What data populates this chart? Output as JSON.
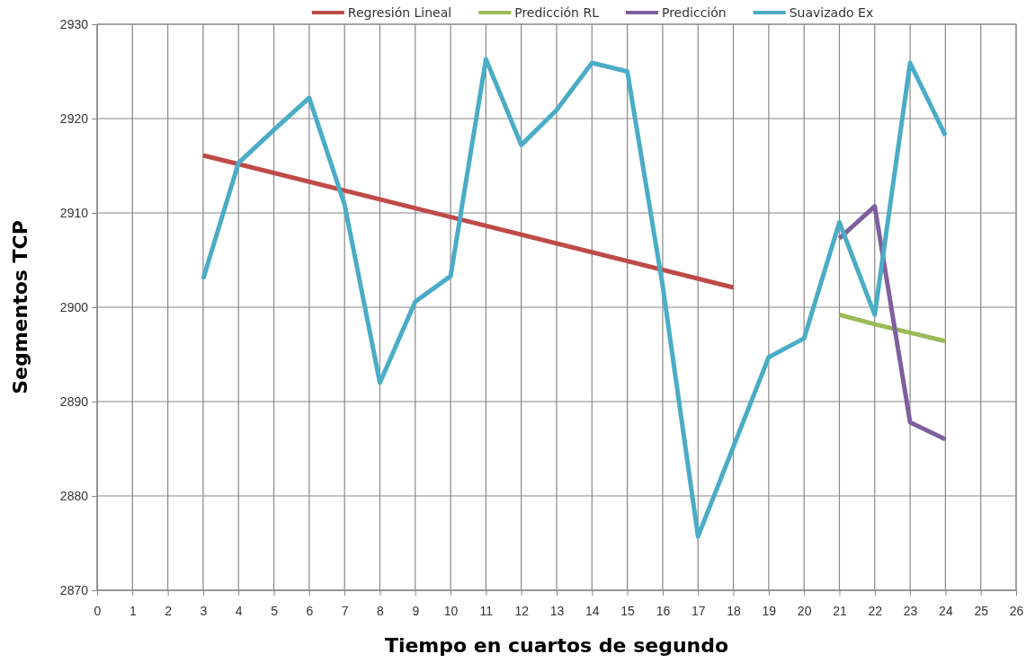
{
  "chart_data": {
    "type": "line",
    "xlabel": "Tiempo en cuartos de segundo",
    "ylabel": "Segmentos TCP",
    "xlim": [
      0,
      26
    ],
    "xticks": [
      0,
      1,
      2,
      3,
      4,
      5,
      6,
      7,
      8,
      9,
      10,
      11,
      12,
      13,
      14,
      15,
      16,
      17,
      18,
      19,
      20,
      21,
      22,
      23,
      24,
      25,
      26
    ],
    "ylim": [
      2870,
      2930
    ],
    "yticks": [
      2870,
      2880,
      2890,
      2900,
      2910,
      2920,
      2930
    ],
    "grid": true,
    "legend": "top",
    "marker": "none",
    "line_style": "solid",
    "series": [
      {
        "name": "Regresión Lineal",
        "color": "#be4b48",
        "x": [
          3,
          18
        ],
        "values": [
          2916.1,
          2902.1
        ]
      },
      {
        "name": "Predicción RL",
        "color": "#9bbb59",
        "x": [
          21,
          22,
          23,
          24
        ],
        "values": [
          2899.2,
          2898.2,
          2897.3,
          2896.4
        ]
      },
      {
        "name": "Predicción",
        "color": "#7f609f",
        "x": [
          21,
          22,
          23,
          24
        ],
        "values": [
          2907.3,
          2910.7,
          2887.8,
          2886.0
        ]
      },
      {
        "name": "Suavizado Ex",
        "color": "#4bacc6",
        "x": [
          3,
          4,
          5,
          6,
          7,
          8,
          9,
          10,
          11,
          12,
          13,
          14,
          15,
          16,
          17,
          18,
          19,
          20,
          21,
          22,
          23,
          24
        ],
        "values": [
          2903,
          2915.3,
          2918.8,
          2922.2,
          2910.9,
          2892,
          2900.6,
          2903.3,
          2926.3,
          2917.2,
          2920.9,
          2925.9,
          2925,
          2902.3,
          2875.7,
          2885.2,
          2894.7,
          2896.7,
          2909,
          2899.2,
          2925.9,
          2918.2
        ]
      }
    ]
  }
}
